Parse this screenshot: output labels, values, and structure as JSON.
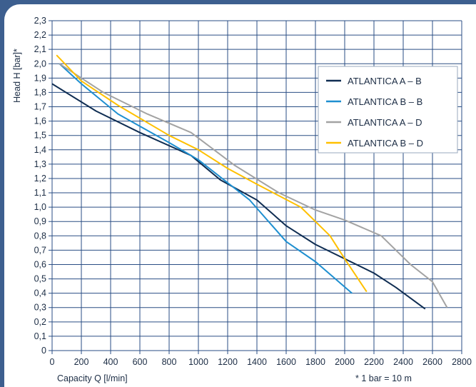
{
  "chart_data": {
    "type": "line",
    "xlabel": "Capacity Q [l/min]",
    "ylabel": "Head H [bar]*",
    "note": "* 1 bar = 10 m",
    "xlim": [
      0,
      2800
    ],
    "ylim": [
      0,
      2.3
    ],
    "x_ticks": [
      "0",
      "200",
      "400",
      "600",
      "800",
      "1000",
      "1200",
      "1400",
      "1600",
      "1800",
      "2000",
      "2200",
      "2400",
      "2600",
      "2800"
    ],
    "y_ticks": [
      "0",
      "0,1",
      "0,2",
      "0,3",
      "0,4",
      "0,5",
      "0,6",
      "0,7",
      "0,8",
      "0,9",
      "1,0",
      "1,1",
      "1,2",
      "1,3",
      "1,4",
      "1,5",
      "1,6",
      "1,7",
      "1,8",
      "1,9",
      "2,0",
      "2,1",
      "2,2",
      "2,3"
    ],
    "grid": true,
    "legend_position": "top-right",
    "series": [
      {
        "name": "ATLANTICA A – B",
        "color": "#0f2d52",
        "points": [
          [
            0,
            1.86
          ],
          [
            300,
            1.67
          ],
          [
            600,
            1.52
          ],
          [
            950,
            1.36
          ],
          [
            1150,
            1.19
          ],
          [
            1400,
            1.05
          ],
          [
            1600,
            0.87
          ],
          [
            1800,
            0.74
          ],
          [
            2200,
            0.54
          ],
          [
            2350,
            0.44
          ],
          [
            2550,
            0.29
          ]
        ]
      },
      {
        "name": "ATLANTICA B – B",
        "color": "#1e8fd0",
        "points": [
          [
            50,
            2.0
          ],
          [
            200,
            1.86
          ],
          [
            450,
            1.65
          ],
          [
            800,
            1.45
          ],
          [
            1000,
            1.33
          ],
          [
            1200,
            1.17
          ],
          [
            1350,
            1.05
          ],
          [
            1600,
            0.76
          ],
          [
            1800,
            0.62
          ],
          [
            2050,
            0.4
          ]
        ]
      },
      {
        "name": "ATLANTICA A – D",
        "color": "#a3a3a3",
        "points": [
          [
            50,
            2.0
          ],
          [
            350,
            1.8
          ],
          [
            650,
            1.65
          ],
          [
            950,
            1.52
          ],
          [
            1250,
            1.29
          ],
          [
            1550,
            1.1
          ],
          [
            1800,
            0.98
          ],
          [
            2000,
            0.91
          ],
          [
            2250,
            0.8
          ],
          [
            2450,
            0.6
          ],
          [
            2600,
            0.48
          ],
          [
            2700,
            0.3
          ]
        ]
      },
      {
        "name": "ATLANTICA B – D",
        "color": "#ffc000",
        "points": [
          [
            30,
            2.06
          ],
          [
            200,
            1.88
          ],
          [
            450,
            1.71
          ],
          [
            800,
            1.5
          ],
          [
            1000,
            1.4
          ],
          [
            1200,
            1.27
          ],
          [
            1400,
            1.16
          ],
          [
            1700,
            1.0
          ],
          [
            1900,
            0.8
          ],
          [
            2000,
            0.64
          ],
          [
            2150,
            0.41
          ]
        ]
      }
    ]
  }
}
